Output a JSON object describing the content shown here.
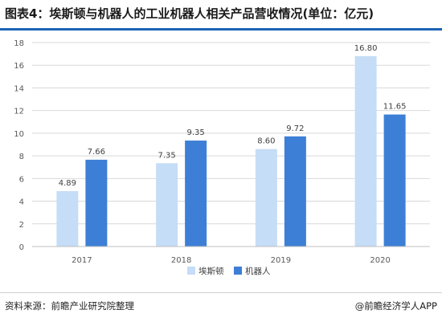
{
  "title": "图表4：埃斯顿与机器人的工业机器人相关产品营收情况(单位：亿元)",
  "footer": {
    "source": "资料来源：前瞻产业研究院整理",
    "brand": "@前瞻经济学人APP"
  },
  "colors": {
    "series_1": "#c5ddf6",
    "series_2": "#3d7fd6",
    "title_rule": "#1b63b3"
  },
  "chart_data": {
    "type": "bar",
    "categories": [
      "2017",
      "2018",
      "2019",
      "2020"
    ],
    "series": [
      {
        "name": "埃斯顿",
        "values": [
          4.89,
          7.35,
          8.6,
          16.8
        ],
        "labels": [
          "4.89",
          "7.35",
          "8.60",
          "16.80"
        ]
      },
      {
        "name": "机器人",
        "values": [
          7.66,
          9.35,
          9.72,
          11.65
        ],
        "labels": [
          "7.66",
          "9.35",
          "9.72",
          "11.65"
        ]
      }
    ],
    "yticks": [
      "0",
      "2",
      "4",
      "6",
      "8",
      "10",
      "12",
      "14",
      "16",
      "18"
    ],
    "ylim": [
      0,
      18
    ],
    "grid": true,
    "legend_position": "bottom-center"
  }
}
